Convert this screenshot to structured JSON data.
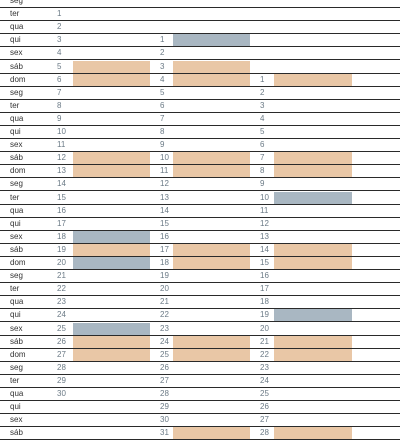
{
  "colors": {
    "weekend": "#e9c7a6",
    "holiday": "#a9b7c2",
    "line": "#2a2a2a",
    "label": "#333333",
    "number": "#6b7a86"
  },
  "calendar": {
    "rows": [
      {
        "day": "seg",
        "months": [
          null,
          null,
          null
        ]
      },
      {
        "day": "ter",
        "months": [
          {
            "n": "1"
          },
          null,
          null
        ]
      },
      {
        "day": "qua",
        "months": [
          {
            "n": "2"
          },
          null,
          null
        ]
      },
      {
        "day": "qui",
        "months": [
          {
            "n": "3"
          },
          {
            "n": "1",
            "hl": "holiday"
          },
          null
        ]
      },
      {
        "day": "sex",
        "months": [
          {
            "n": "4"
          },
          {
            "n": "2"
          },
          null
        ]
      },
      {
        "day": "sáb",
        "months": [
          {
            "n": "5",
            "hl": "weekend"
          },
          {
            "n": "3",
            "hl": "weekend"
          },
          null
        ]
      },
      {
        "day": "dom",
        "months": [
          {
            "n": "6",
            "hl": "weekend"
          },
          {
            "n": "4",
            "hl": "weekend"
          },
          {
            "n": "1",
            "hl": "weekend"
          }
        ]
      },
      {
        "day": "seg",
        "months": [
          {
            "n": "7"
          },
          {
            "n": "5"
          },
          {
            "n": "2"
          }
        ]
      },
      {
        "day": "ter",
        "months": [
          {
            "n": "8"
          },
          {
            "n": "6"
          },
          {
            "n": "3"
          }
        ]
      },
      {
        "day": "qua",
        "months": [
          {
            "n": "9"
          },
          {
            "n": "7"
          },
          {
            "n": "4"
          }
        ]
      },
      {
        "day": "qui",
        "months": [
          {
            "n": "10"
          },
          {
            "n": "8"
          },
          {
            "n": "5"
          }
        ]
      },
      {
        "day": "sex",
        "months": [
          {
            "n": "11"
          },
          {
            "n": "9"
          },
          {
            "n": "6"
          }
        ]
      },
      {
        "day": "sáb",
        "months": [
          {
            "n": "12",
            "hl": "weekend"
          },
          {
            "n": "10",
            "hl": "weekend"
          },
          {
            "n": "7",
            "hl": "weekend"
          }
        ]
      },
      {
        "day": "dom",
        "months": [
          {
            "n": "13",
            "hl": "weekend"
          },
          {
            "n": "11",
            "hl": "weekend"
          },
          {
            "n": "8",
            "hl": "weekend"
          }
        ]
      },
      {
        "day": "seg",
        "months": [
          {
            "n": "14"
          },
          {
            "n": "12"
          },
          {
            "n": "9"
          }
        ]
      },
      {
        "day": "ter",
        "months": [
          {
            "n": "15"
          },
          {
            "n": "13"
          },
          {
            "n": "10",
            "hl": "holiday"
          }
        ]
      },
      {
        "day": "qua",
        "months": [
          {
            "n": "16"
          },
          {
            "n": "14"
          },
          {
            "n": "11"
          }
        ]
      },
      {
        "day": "qui",
        "months": [
          {
            "n": "17"
          },
          {
            "n": "15"
          },
          {
            "n": "12"
          }
        ]
      },
      {
        "day": "sex",
        "months": [
          {
            "n": "18",
            "hl": "holiday"
          },
          {
            "n": "16"
          },
          {
            "n": "13"
          }
        ]
      },
      {
        "day": "sáb",
        "months": [
          {
            "n": "19",
            "hl": "weekend"
          },
          {
            "n": "17",
            "hl": "weekend"
          },
          {
            "n": "14",
            "hl": "weekend"
          }
        ]
      },
      {
        "day": "dom",
        "months": [
          {
            "n": "20",
            "hl": "holiday"
          },
          {
            "n": "18",
            "hl": "weekend"
          },
          {
            "n": "15",
            "hl": "weekend"
          }
        ]
      },
      {
        "day": "seg",
        "months": [
          {
            "n": "21"
          },
          {
            "n": "19"
          },
          {
            "n": "16"
          }
        ]
      },
      {
        "day": "ter",
        "months": [
          {
            "n": "22"
          },
          {
            "n": "20"
          },
          {
            "n": "17"
          }
        ]
      },
      {
        "day": "qua",
        "months": [
          {
            "n": "23"
          },
          {
            "n": "21"
          },
          {
            "n": "18"
          }
        ]
      },
      {
        "day": "qui",
        "months": [
          {
            "n": "24"
          },
          {
            "n": "22"
          },
          {
            "n": "19",
            "hl": "holiday"
          }
        ]
      },
      {
        "day": "sex",
        "months": [
          {
            "n": "25",
            "hl": "holiday"
          },
          {
            "n": "23"
          },
          {
            "n": "20"
          }
        ]
      },
      {
        "day": "sáb",
        "months": [
          {
            "n": "26",
            "hl": "weekend"
          },
          {
            "n": "24",
            "hl": "weekend"
          },
          {
            "n": "21",
            "hl": "weekend"
          }
        ]
      },
      {
        "day": "dom",
        "months": [
          {
            "n": "27",
            "hl": "weekend"
          },
          {
            "n": "25",
            "hl": "weekend"
          },
          {
            "n": "22",
            "hl": "weekend"
          }
        ]
      },
      {
        "day": "seg",
        "months": [
          {
            "n": "28"
          },
          {
            "n": "26"
          },
          {
            "n": "23"
          }
        ]
      },
      {
        "day": "ter",
        "months": [
          {
            "n": "29"
          },
          {
            "n": "27"
          },
          {
            "n": "24"
          }
        ]
      },
      {
        "day": "qua",
        "months": [
          {
            "n": "30"
          },
          {
            "n": "28"
          },
          {
            "n": "25"
          }
        ]
      },
      {
        "day": "qui",
        "months": [
          null,
          {
            "n": "29"
          },
          {
            "n": "26"
          }
        ]
      },
      {
        "day": "sex",
        "months": [
          null,
          {
            "n": "30"
          },
          {
            "n": "27"
          }
        ]
      },
      {
        "day": "sáb",
        "months": [
          null,
          {
            "n": "31",
            "hl": "weekend"
          },
          {
            "n": "28",
            "hl": "weekend"
          }
        ]
      }
    ]
  }
}
